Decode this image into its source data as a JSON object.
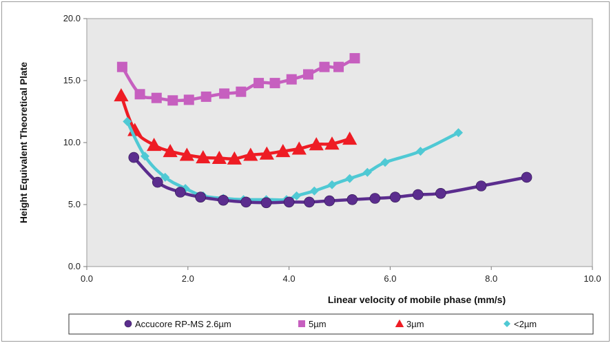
{
  "chart_data": {
    "type": "line",
    "title": "",
    "xlabel": "Linear velocity of mobile phase (mm/s)",
    "ylabel": "Height Equivalent Theoretical Plate",
    "xlim": [
      0,
      10
    ],
    "ylim": [
      0,
      20
    ],
    "x_ticks": [
      "0.0",
      "2.0",
      "4.0",
      "6.0",
      "8.0",
      "10.0"
    ],
    "y_ticks": [
      "0.0",
      "5.0",
      "10.0",
      "15.0",
      "20.0"
    ],
    "plot_background": "#e8e8e8",
    "grid": false,
    "legend_position": "bottom",
    "series": [
      {
        "name": "Accucore RP-MS 2.6µm",
        "color": "#5b2d8e",
        "marker": "circle",
        "points": [
          [
            0.93,
            8.8
          ],
          [
            1.4,
            6.8
          ],
          [
            1.85,
            6.0
          ],
          [
            2.25,
            5.6
          ],
          [
            2.7,
            5.35
          ],
          [
            3.15,
            5.2
          ],
          [
            3.55,
            5.15
          ],
          [
            4.0,
            5.2
          ],
          [
            4.4,
            5.2
          ],
          [
            4.8,
            5.3
          ],
          [
            5.25,
            5.4
          ],
          [
            5.7,
            5.5
          ],
          [
            6.1,
            5.6
          ],
          [
            6.55,
            5.8
          ],
          [
            7.0,
            5.9
          ],
          [
            7.8,
            6.5
          ],
          [
            8.7,
            7.2
          ]
        ]
      },
      {
        "name": "5µm",
        "color": "#c65fbf",
        "marker": "square",
        "points": [
          [
            0.7,
            16.1
          ],
          [
            1.05,
            13.9
          ],
          [
            1.38,
            13.6
          ],
          [
            1.7,
            13.4
          ],
          [
            2.02,
            13.45
          ],
          [
            2.36,
            13.7
          ],
          [
            2.72,
            13.95
          ],
          [
            3.05,
            14.1
          ],
          [
            3.4,
            14.8
          ],
          [
            3.72,
            14.8
          ],
          [
            4.05,
            15.1
          ],
          [
            4.38,
            15.5
          ],
          [
            4.7,
            16.1
          ],
          [
            4.98,
            16.1
          ],
          [
            5.3,
            16.8
          ]
        ]
      },
      {
        "name": "3µm",
        "color": "#ee1c24",
        "marker": "triangle",
        "points": [
          [
            0.68,
            13.8
          ],
          [
            0.95,
            11.0
          ],
          [
            1.33,
            9.8
          ],
          [
            1.65,
            9.3
          ],
          [
            1.98,
            9.0
          ],
          [
            2.3,
            8.8
          ],
          [
            2.62,
            8.75
          ],
          [
            2.92,
            8.7
          ],
          [
            3.24,
            9.0
          ],
          [
            3.56,
            9.1
          ],
          [
            3.88,
            9.3
          ],
          [
            4.2,
            9.5
          ],
          [
            4.54,
            9.85
          ],
          [
            4.85,
            9.9
          ],
          [
            5.2,
            10.3
          ]
        ]
      },
      {
        "name": "<2µm",
        "color": "#4fc9d4",
        "marker": "diamond",
        "points": [
          [
            0.8,
            11.7
          ],
          [
            1.15,
            8.9
          ],
          [
            1.55,
            7.2
          ],
          [
            1.95,
            6.3
          ],
          [
            2.3,
            5.7
          ],
          [
            2.7,
            5.5
          ],
          [
            3.1,
            5.4
          ],
          [
            3.55,
            5.4
          ],
          [
            3.95,
            5.4
          ],
          [
            4.15,
            5.7
          ],
          [
            4.5,
            6.1
          ],
          [
            4.85,
            6.6
          ],
          [
            5.2,
            7.1
          ],
          [
            5.55,
            7.6
          ],
          [
            5.9,
            8.4
          ],
          [
            6.6,
            9.3
          ],
          [
            7.35,
            10.8
          ]
        ]
      }
    ]
  }
}
